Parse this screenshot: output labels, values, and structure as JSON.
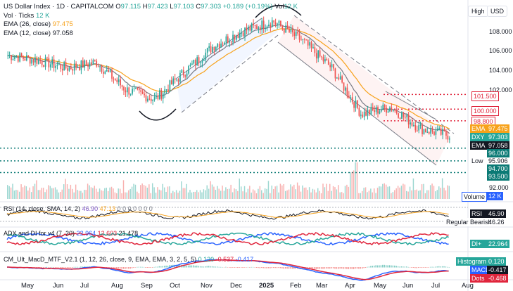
{
  "symbol_line": {
    "title": "US Dollar Index · 1D · CAPITALCOM",
    "o_label": "O",
    "o": "97.115",
    "h_label": "H",
    "h": "97.423",
    "l_label": "L",
    "l": "97.103",
    "c_label": "C",
    "c": "97.303",
    "chg": "+0.189 (+0.19%)",
    "vol_label": "Vol",
    "vol": "12 K"
  },
  "indicators": {
    "vol_ticks": "Vol · Ticks",
    "vol_ticks_val": "12 K",
    "ema26": "EMA (26, close)",
    "ema26_val": "97.475",
    "ema12": "EMA (12, close)",
    "ema12_val": "97.058"
  },
  "buttons": {
    "high": "High",
    "currency": "USD"
  },
  "price_ticks": [
    "108.000",
    "106.000",
    "104.000",
    "102.000",
    "92.000"
  ],
  "level_tags": [
    {
      "text": "101.500",
      "color": "#e0253c",
      "style": "outline"
    },
    {
      "text": "100.000",
      "color": "#e0253c",
      "style": "outline"
    },
    {
      "text": "98.800",
      "color": "#e0253c",
      "style": "outline"
    },
    {
      "label": "EMA",
      "text": "97.475",
      "color": "#f7a21b",
      "style": "fill"
    },
    {
      "label": "DXY",
      "text": "97.303",
      "color": "#26a69a",
      "style": "fill"
    },
    {
      "label": "EMA",
      "text": "97.058",
      "color": "#131722",
      "style": "fill"
    },
    {
      "text": "96.000",
      "color": "#0b7a75",
      "style": "fill"
    },
    {
      "label": "Low",
      "text": "95.906",
      "color": "#ffffff",
      "style": "plain"
    },
    {
      "text": "94.700",
      "color": "#0b7a75",
      "style": "fill"
    },
    {
      "text": "93.500",
      "color": "#0b7a75",
      "style": "fill"
    },
    {
      "label": "Volume",
      "text": "12 K",
      "color": "#2962ff",
      "style": "outline"
    }
  ],
  "rsi": {
    "label": "RSI (14, close, SMA, 14, 2)",
    "v1": "46.90",
    "v2": "47.13",
    "zeros": "0 0 0 0 0 0 0",
    "tag_label": "RSI",
    "tag_value": "46.90",
    "rb_label": "Regular Bearish",
    "rb_value": "46.26"
  },
  "adx": {
    "label": "ADX and DI for v4 (7, 20)",
    "v1": "22.964",
    "v2": "12.603",
    "v3": "21.478",
    "tag_label": "DI+",
    "tag_value": "22.964"
  },
  "macd": {
    "label": "CM_Ult_MacD_MTF_V2.1 (1, 12, 26, close, 9, EMA, EMA, 3, 2, 5, 5)",
    "v1": "0.120",
    "v2": "-0.537",
    "v3": "-0.417",
    "hist_label": "Histogram",
    "hist_value": "0.120",
    "macd_label": "MACD",
    "macd_value": "-0.417",
    "dots_label": "Dots",
    "dots_value": "-0.468"
  },
  "x_labels": [
    "May",
    "Jun",
    "Jul",
    "Aug",
    "Sep",
    "Oct",
    "Nov",
    "Dec",
    "2025",
    "Feb",
    "Mar",
    "Apr",
    "May",
    "Jun",
    "Jul",
    "Aug"
  ],
  "colors": {
    "up": "#26a69a",
    "down": "#ef5350",
    "ema26": "#f7a21b",
    "ema12": "#787b86",
    "level": "#0b7a75",
    "resistance": "#e0253c"
  },
  "chart_data": {
    "type": "candlestick",
    "instrument": "US Dollar Index",
    "interval": "1D",
    "ylim": [
      92,
      110
    ],
    "close_path": [
      {
        "t": "Apr 2024",
        "v": 105.5
      },
      {
        "t": "May 2024",
        "v": 105.0
      },
      {
        "t": "Jun 2024",
        "v": 104.2
      },
      {
        "t": "Jul 2024",
        "v": 104.8
      },
      {
        "t": "Aug 2024",
        "v": 102.0
      },
      {
        "t": "Sep 2024",
        "v": 101.0
      },
      {
        "t": "Oct 2024",
        "v": 103.8
      },
      {
        "t": "Nov 2024",
        "v": 106.5
      },
      {
        "t": "Dec 2024",
        "v": 108.0
      },
      {
        "t": "Jan 2025",
        "v": 109.0
      },
      {
        "t": "Feb 2025",
        "v": 107.0
      },
      {
        "t": "Mar 2025",
        "v": 104.2
      },
      {
        "t": "Apr 2025",
        "v": 99.5
      },
      {
        "t": "May 2025",
        "v": 100.2
      },
      {
        "t": "Jun 2025",
        "v": 98.0
      },
      {
        "t": "Jul 2025",
        "v": 97.3
      }
    ],
    "horizontal_levels": [
      101.5,
      100.0,
      98.8,
      96.0,
      94.7,
      93.5
    ]
  }
}
